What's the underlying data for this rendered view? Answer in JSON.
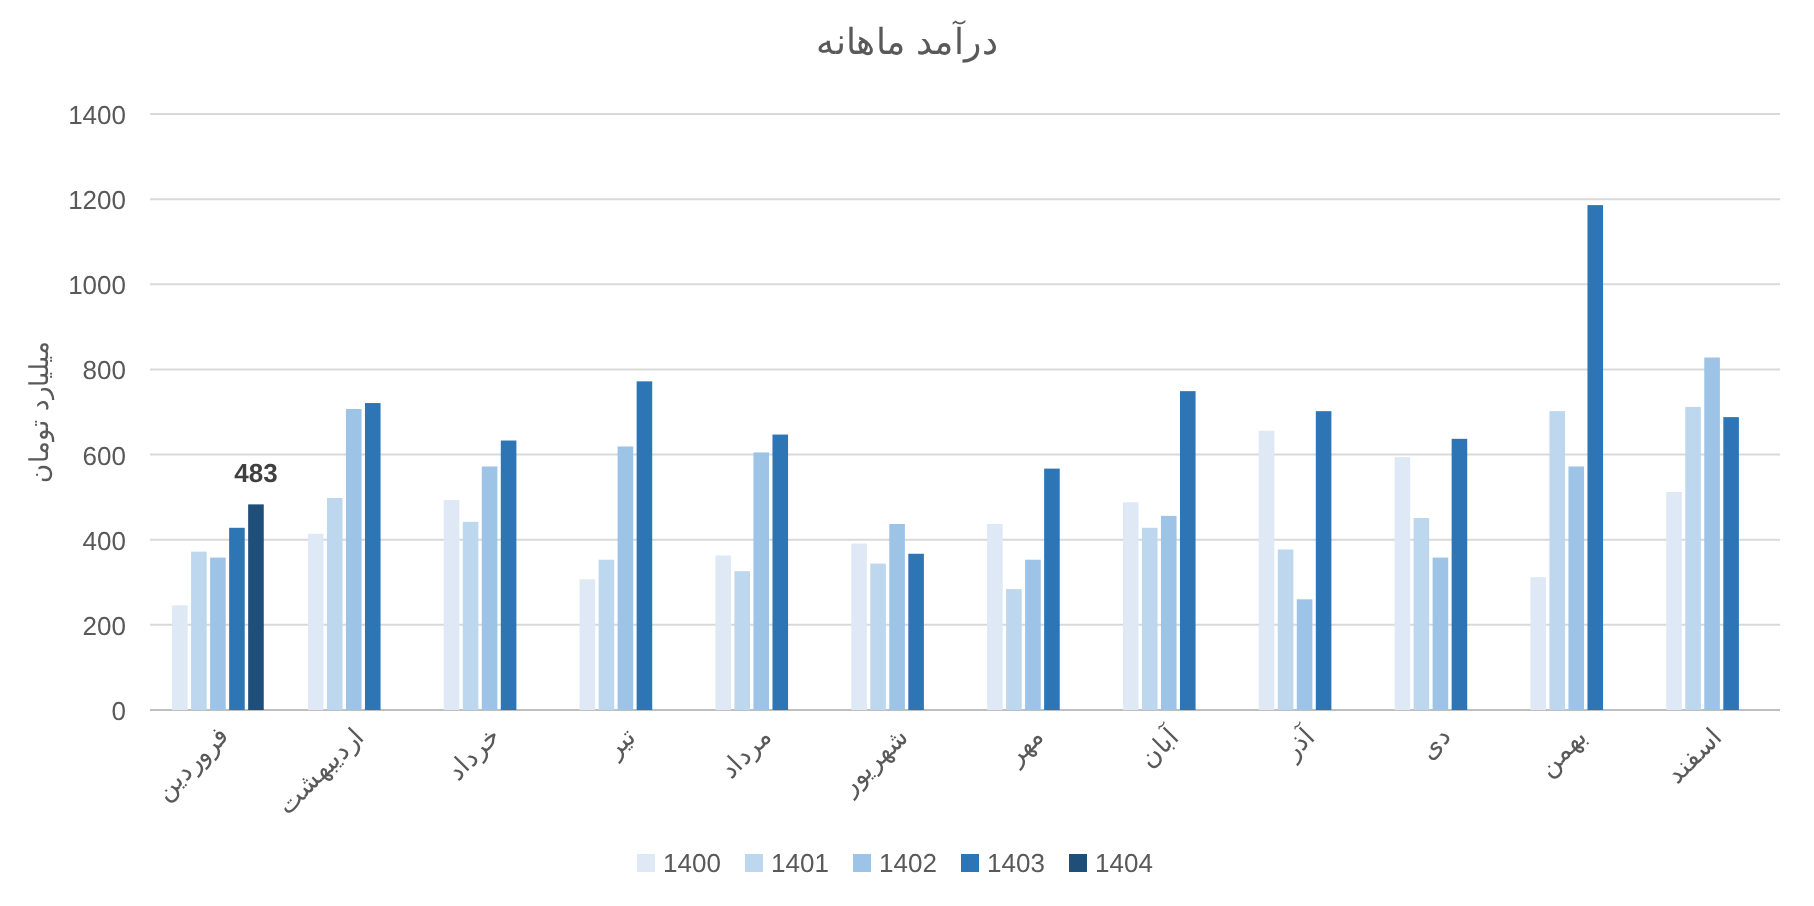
{
  "chart_data": {
    "type": "bar",
    "title": "درآمد ماهانه",
    "ylabel": "میلیارد تومان",
    "categories": [
      "فروردین",
      "اردیبهشت",
      "خرداد",
      "تیر",
      "مرداد",
      "شهریور",
      "مهر",
      "آبان",
      "آذر",
      "دی",
      "بهمن",
      "اسفند"
    ],
    "series": [
      {
        "name": "1400",
        "color": "#dee9f5",
        "values": [
          246,
          414,
          493,
          307,
          363,
          391,
          437,
          488,
          656,
          594,
          312,
          512
        ]
      },
      {
        "name": "1401",
        "color": "#bdd7ee",
        "values": [
          372,
          498,
          442,
          353,
          326,
          344,
          284,
          428,
          377,
          451,
          702,
          712
        ]
      },
      {
        "name": "1402",
        "color": "#9dc3e6",
        "values": [
          358,
          707,
          572,
          619,
          605,
          437,
          353,
          456,
          260,
          358,
          572,
          828
        ]
      },
      {
        "name": "1403",
        "color": "#2e75b6",
        "values": [
          428,
          721,
          633,
          772,
          647,
          367,
          567,
          749,
          702,
          637,
          1186,
          688
        ]
      },
      {
        "name": "1404",
        "color": "#1f4e79",
        "values": [
          483,
          null,
          null,
          null,
          null,
          null,
          null,
          null,
          null,
          null,
          null,
          null
        ],
        "value_labels": [
          "483",
          null,
          null,
          null,
          null,
          null,
          null,
          null,
          null,
          null,
          null,
          null
        ]
      }
    ],
    "ylim": [
      0,
      1400
    ],
    "yticks": [
      0,
      200,
      400,
      600,
      800,
      1000,
      1200,
      1400
    ],
    "grid": "y",
    "legend": "bottom"
  }
}
